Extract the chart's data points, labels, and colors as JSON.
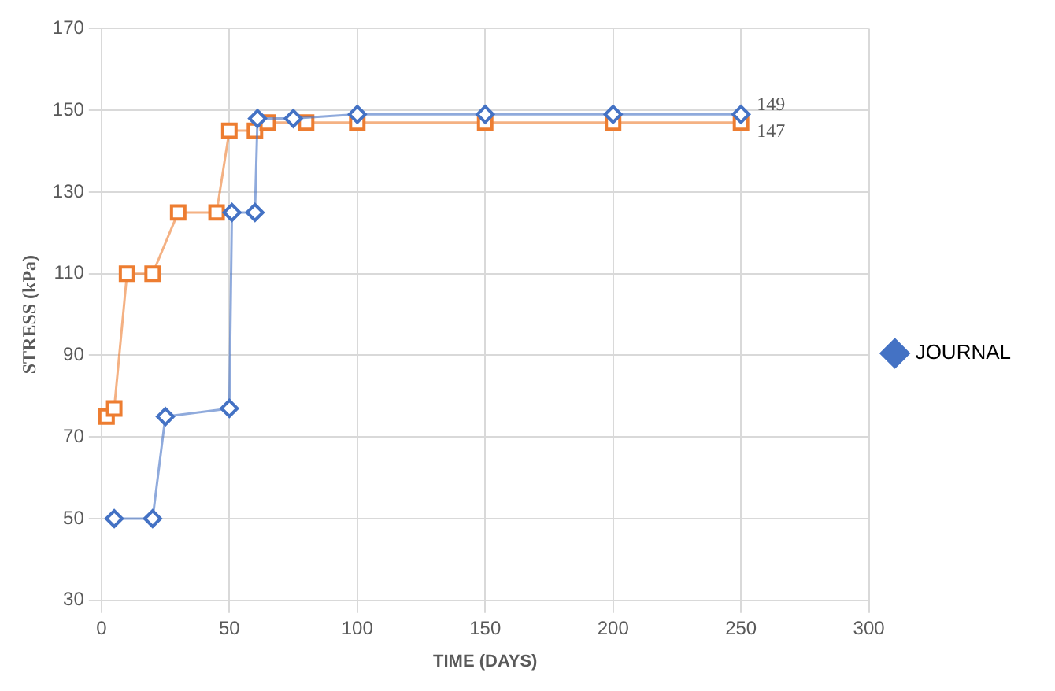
{
  "chart_data": {
    "type": "line",
    "xlabel": "TIME (DAYS)",
    "ylabel": "STRESS (kPa)",
    "xlim": [
      0,
      300
    ],
    "xticks": [
      0,
      50,
      100,
      150,
      200,
      250,
      300
    ],
    "ylim": [
      30,
      170
    ],
    "yticks": [
      30,
      50,
      70,
      90,
      110,
      130,
      150,
      170
    ],
    "grid": true,
    "legend": "right",
    "series": [
      {
        "name": "JOURNAL",
        "color": "#4472c4",
        "marker": "diamond",
        "x": [
          5,
          20,
          25,
          50,
          51,
          60,
          61,
          75,
          100,
          150,
          200,
          250
        ],
        "values": [
          50,
          50,
          75,
          77,
          125,
          125,
          148,
          148,
          149,
          149,
          149,
          149
        ]
      },
      {
        "color": "#ed7d31",
        "marker": "square",
        "x": [
          2,
          5,
          10,
          20,
          30,
          45,
          50,
          60,
          65,
          80,
          100,
          150,
          200,
          250
        ],
        "values": [
          75,
          77,
          110,
          110,
          125,
          125,
          145,
          145,
          147,
          147,
          147,
          147,
          147,
          147
        ]
      }
    ],
    "annotations": [
      {
        "text": "149",
        "x": 250,
        "y": 149
      },
      {
        "text": "147",
        "x": 250,
        "y": 147
      }
    ]
  }
}
